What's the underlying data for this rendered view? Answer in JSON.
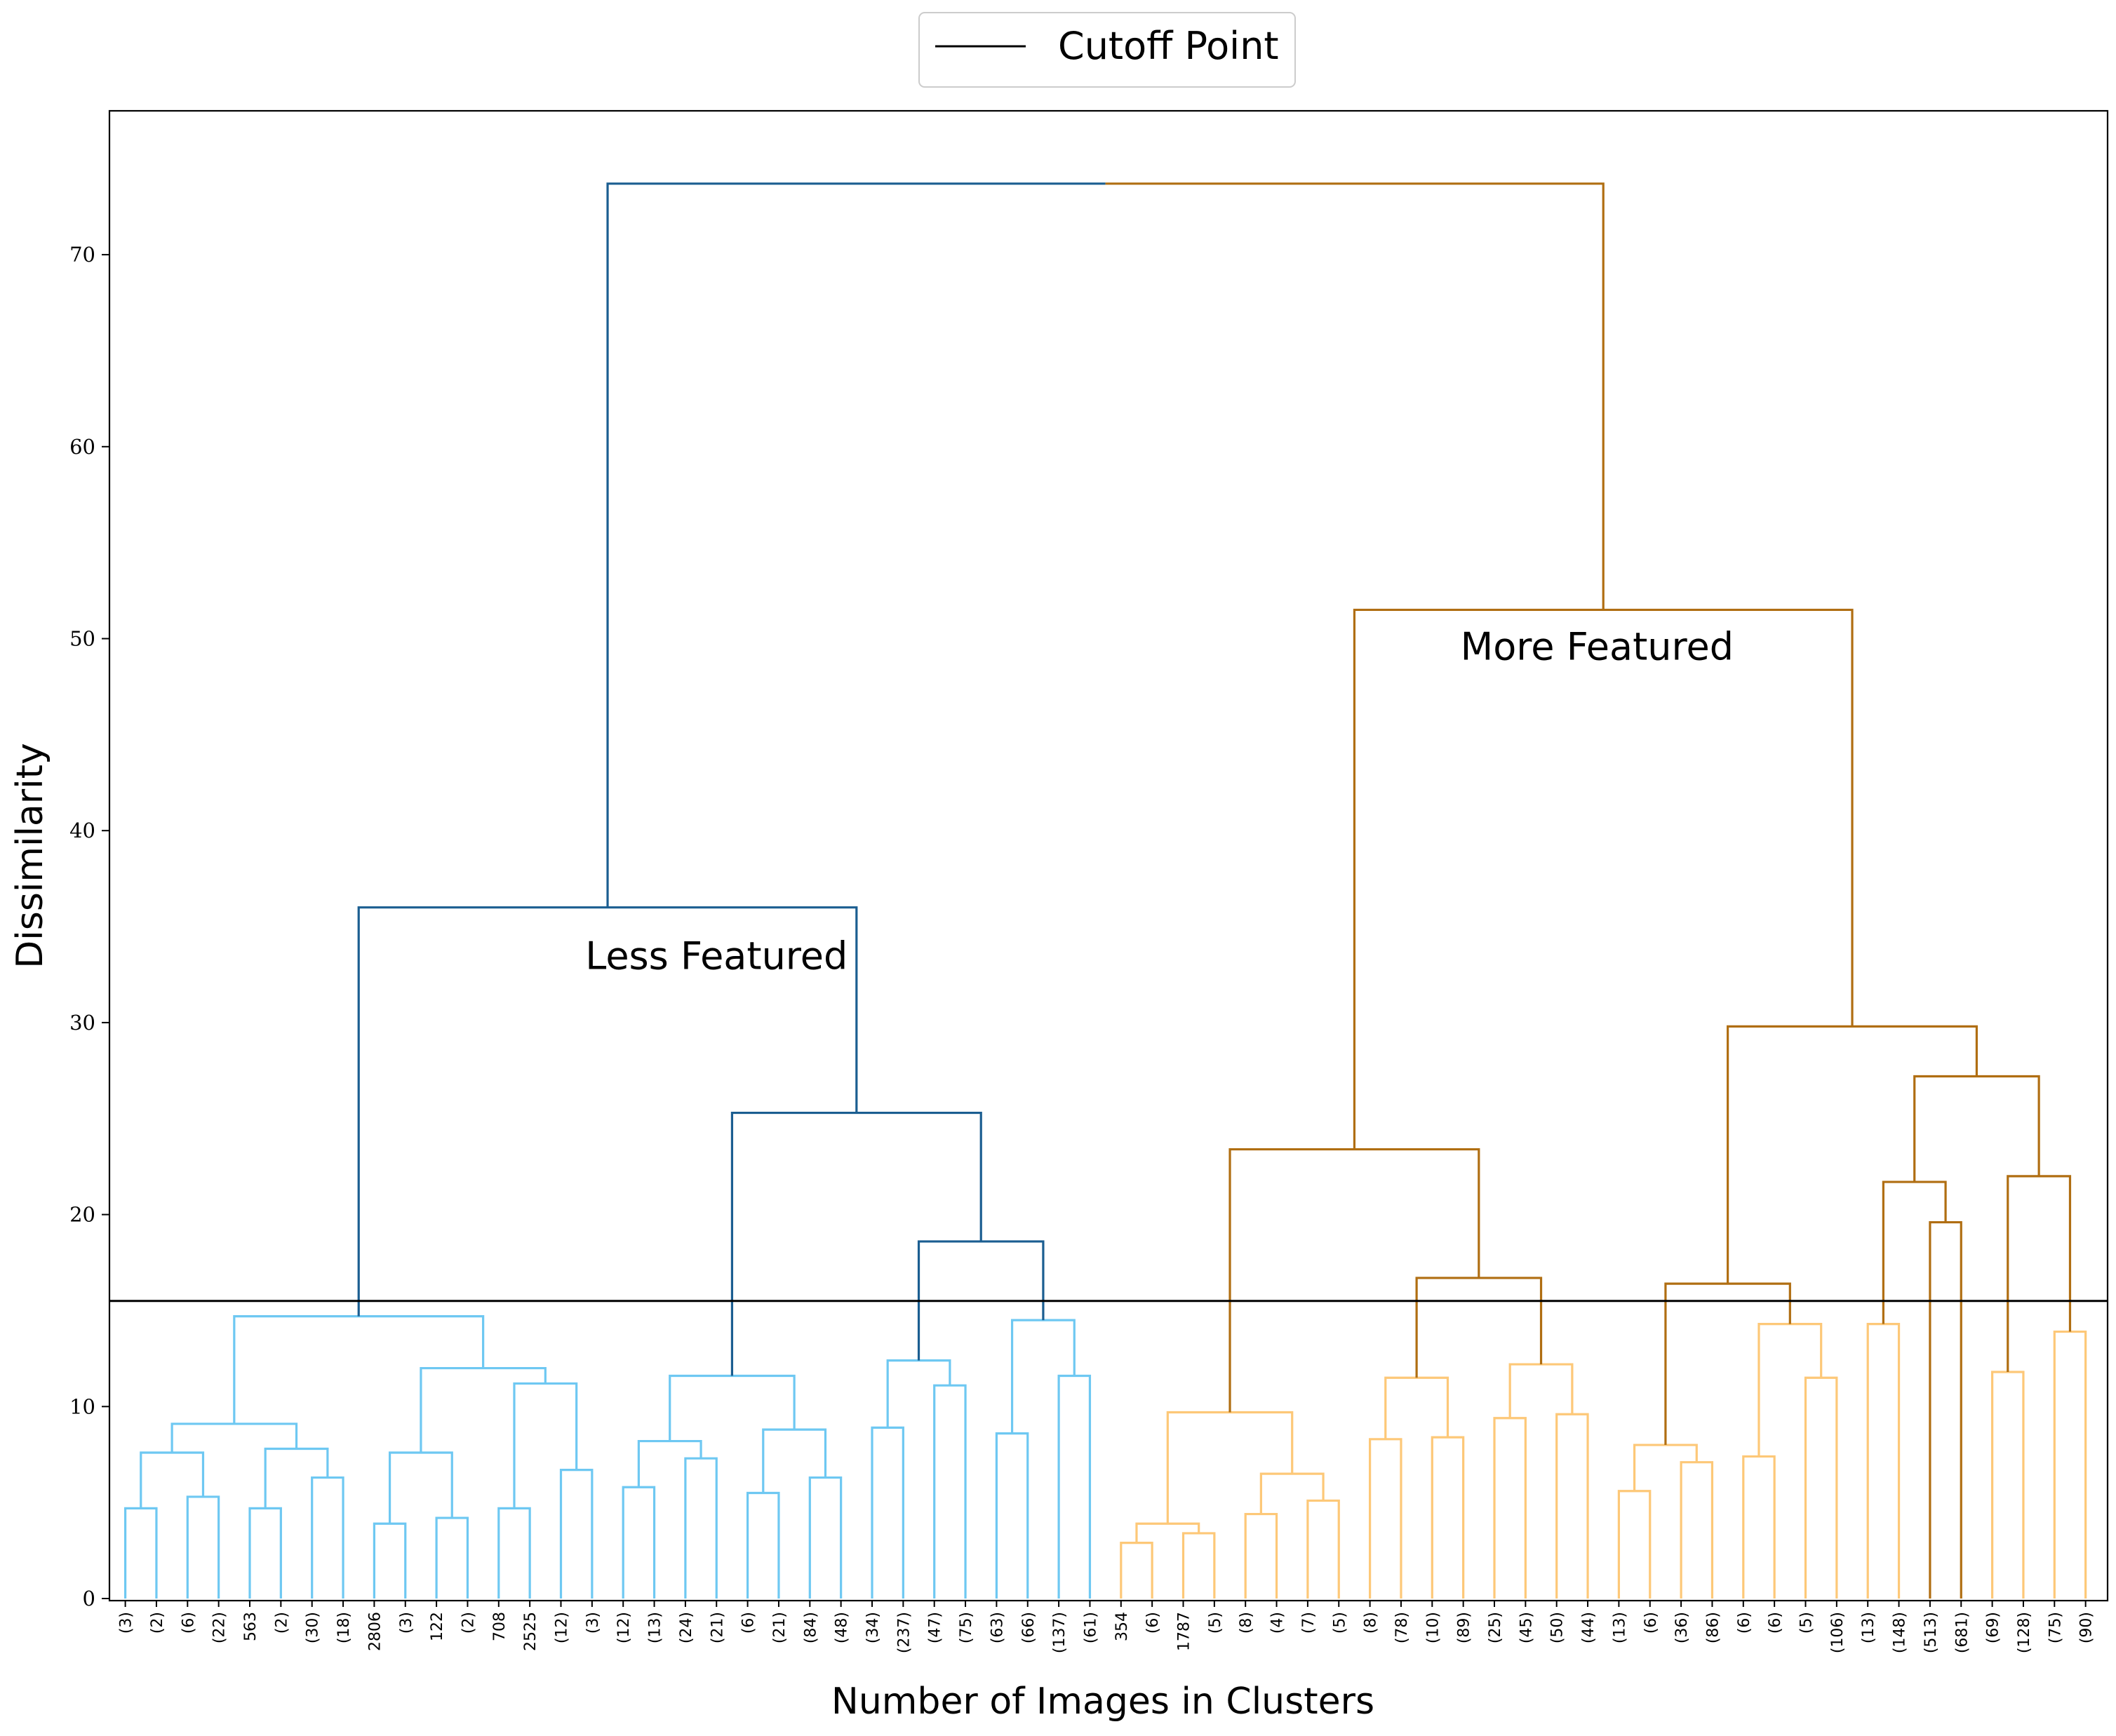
{
  "chart_data": {
    "type": "dendrogram",
    "title": "",
    "xlabel": "Number of Images in Clusters",
    "ylabel": "Dissimilarity",
    "ylim": [
      0,
      77.5
    ],
    "yticks": [
      0,
      10,
      20,
      30,
      40,
      50,
      60,
      70
    ],
    "grid": false,
    "legend": {
      "placement": "top-center",
      "entries": [
        {
          "label": "Cutoff Point",
          "color": "#000000"
        }
      ]
    },
    "cutoff": 15.5,
    "colors": {
      "less_featured_leaf": "#6ec8f2",
      "less_featured_branch": "#1b5e91",
      "more_featured_leaf": "#fdc878",
      "more_featured_branch": "#b06e12",
      "cutoff": "#000000"
    },
    "leaf_labels": [
      "(3)",
      "(2)",
      "(6)",
      "(22)",
      "563",
      "(2)",
      "(30)",
      "(18)",
      "2806",
      "(3)",
      "122",
      "(2)",
      "708",
      "2525",
      "(12)",
      "(3)",
      "(12)",
      "(13)",
      "(24)",
      "(21)",
      "(6)",
      "(21)",
      "(84)",
      "(48)",
      "(34)",
      "(237)",
      "(47)",
      "(75)",
      "(63)",
      "(66)",
      "(137)",
      "(61)",
      "354",
      "(6)",
      "1787",
      "(5)",
      "(8)",
      "(4)",
      "(7)",
      "(5)",
      "(8)",
      "(78)",
      "(10)",
      "(89)",
      "(25)",
      "(45)",
      "(50)",
      "(44)",
      "(13)",
      "(6)",
      "(36)",
      "(86)",
      "(6)",
      "(6)",
      "(5)",
      "(106)",
      "(13)",
      "(148)",
      "(513)",
      "(681)",
      "(69)",
      "(128)",
      "(75)",
      "(90)"
    ],
    "merges": [
      {
        "left": 0,
        "right": 1,
        "height": 4.7,
        "color": "#6ec8f2"
      },
      {
        "left": 2,
        "right": 3,
        "height": 5.3,
        "color": "#6ec8f2"
      },
      {
        "left": 64,
        "right": 65,
        "height": 7.6,
        "color": "#6ec8f2"
      },
      {
        "left": 4,
        "right": 5,
        "height": 4.7,
        "color": "#6ec8f2"
      },
      {
        "left": 6,
        "right": 7,
        "height": 6.3,
        "color": "#6ec8f2"
      },
      {
        "left": 67,
        "right": 68,
        "height": 7.8,
        "color": "#6ec8f2"
      },
      {
        "left": 66,
        "right": 69,
        "height": 9.1,
        "color": "#6ec8f2"
      },
      {
        "left": 8,
        "right": 9,
        "height": 3.9,
        "color": "#6ec8f2"
      },
      {
        "left": 10,
        "right": 11,
        "height": 4.2,
        "color": "#6ec8f2"
      },
      {
        "left": 71,
        "right": 72,
        "height": 7.6,
        "color": "#6ec8f2"
      },
      {
        "left": 12,
        "right": 13,
        "height": 4.7,
        "color": "#6ec8f2"
      },
      {
        "left": 14,
        "right": 15,
        "height": 6.7,
        "color": "#6ec8f2"
      },
      {
        "left": 74,
        "right": 75,
        "height": 11.2,
        "color": "#6ec8f2"
      },
      {
        "left": 73,
        "right": 76,
        "height": 12.0,
        "color": "#6ec8f2"
      },
      {
        "left": 70,
        "right": 77,
        "height": 14.7,
        "color": "#6ec8f2"
      },
      {
        "left": 16,
        "right": 17,
        "height": 5.8,
        "color": "#6ec8f2"
      },
      {
        "left": 18,
        "right": 19,
        "height": 7.3,
        "color": "#6ec8f2"
      },
      {
        "left": 79,
        "right": 80,
        "height": 8.2,
        "color": "#6ec8f2"
      },
      {
        "left": 20,
        "right": 21,
        "height": 5.5,
        "color": "#6ec8f2"
      },
      {
        "left": 22,
        "right": 23,
        "height": 6.3,
        "color": "#6ec8f2"
      },
      {
        "left": 82,
        "right": 83,
        "height": 8.8,
        "color": "#6ec8f2"
      },
      {
        "left": 81,
        "right": 84,
        "height": 11.6,
        "color": "#6ec8f2"
      },
      {
        "left": 24,
        "right": 25,
        "height": 8.9,
        "color": "#6ec8f2"
      },
      {
        "left": 26,
        "right": 27,
        "height": 11.1,
        "color": "#6ec8f2"
      },
      {
        "left": 86,
        "right": 87,
        "height": 12.4,
        "color": "#6ec8f2"
      },
      {
        "left": 28,
        "right": 29,
        "height": 8.6,
        "color": "#6ec8f2"
      },
      {
        "left": 30,
        "right": 31,
        "height": 11.6,
        "color": "#6ec8f2"
      },
      {
        "left": 89,
        "right": 90,
        "height": 14.5,
        "color": "#6ec8f2"
      },
      {
        "left": 88,
        "right": 91,
        "height": 18.6,
        "color": "#1b5e91"
      },
      {
        "left": 85,
        "right": 92,
        "height": 25.3,
        "color": "#1b5e91"
      },
      {
        "left": 78,
        "right": 93,
        "height": 36.0,
        "color": "#1b5e91"
      },
      {
        "left": 32,
        "right": 33,
        "height": 2.9,
        "color": "#fdc878"
      },
      {
        "left": 34,
        "right": 35,
        "height": 3.4,
        "color": "#fdc878"
      },
      {
        "left": 95,
        "right": 96,
        "height": 3.9,
        "color": "#fdc878"
      },
      {
        "left": 36,
        "right": 37,
        "height": 4.4,
        "color": "#fdc878"
      },
      {
        "left": 38,
        "right": 39,
        "height": 5.1,
        "color": "#fdc878"
      },
      {
        "left": 98,
        "right": 99,
        "height": 6.5,
        "color": "#fdc878"
      },
      {
        "left": 97,
        "right": 100,
        "height": 9.7,
        "color": "#fdc878"
      },
      {
        "left": 40,
        "right": 41,
        "height": 8.3,
        "color": "#fdc878"
      },
      {
        "left": 42,
        "right": 43,
        "height": 8.4,
        "color": "#fdc878"
      },
      {
        "left": 102,
        "right": 103,
        "height": 11.5,
        "color": "#fdc878"
      },
      {
        "left": 44,
        "right": 45,
        "height": 9.4,
        "color": "#fdc878"
      },
      {
        "left": 46,
        "right": 47,
        "height": 9.6,
        "color": "#fdc878"
      },
      {
        "left": 105,
        "right": 106,
        "height": 12.2,
        "color": "#fdc878"
      },
      {
        "left": 104,
        "right": 107,
        "height": 16.7,
        "color": "#b06e12"
      },
      {
        "left": 101,
        "right": 108,
        "height": 23.4,
        "color": "#b06e12"
      },
      {
        "left": 48,
        "right": 49,
        "height": 5.6,
        "color": "#fdc878"
      },
      {
        "left": 50,
        "right": 51,
        "height": 7.1,
        "color": "#fdc878"
      },
      {
        "left": 110,
        "right": 111,
        "height": 8.0,
        "color": "#fdc878"
      },
      {
        "left": 52,
        "right": 53,
        "height": 7.4,
        "color": "#fdc878"
      },
      {
        "left": 54,
        "right": 55,
        "height": 11.5,
        "color": "#fdc878"
      },
      {
        "left": 113,
        "right": 114,
        "height": 14.3,
        "color": "#fdc878"
      },
      {
        "left": 112,
        "right": 115,
        "height": 16.4,
        "color": "#b06e12"
      },
      {
        "left": 56,
        "right": 57,
        "height": 14.3,
        "color": "#fdc878"
      },
      {
        "left": 58,
        "right": 59,
        "height": 19.6,
        "color": "#b06e12"
      },
      {
        "left": 117,
        "right": 118,
        "height": 21.7,
        "color": "#b06e12"
      },
      {
        "left": 60,
        "right": 61,
        "height": 11.8,
        "color": "#fdc878"
      },
      {
        "left": 62,
        "right": 63,
        "height": 13.9,
        "color": "#fdc878"
      },
      {
        "left": 120,
        "right": 121,
        "height": 22.0,
        "color": "#b06e12"
      },
      {
        "left": 119,
        "right": 122,
        "height": 27.2,
        "color": "#b06e12"
      },
      {
        "left": 116,
        "right": 123,
        "height": 29.8,
        "color": "#b06e12"
      },
      {
        "left": 109,
        "right": 124,
        "height": 51.5,
        "color": "#b06e12"
      },
      {
        "left": 94,
        "right": 125,
        "height": 73.7,
        "color": "split"
      }
    ],
    "annotations": [
      {
        "text": "Less Featured",
        "x_leaf": 19.0,
        "y": 32.8
      },
      {
        "text": "More Featured",
        "x_leaf": 47.3,
        "y": 48.9
      }
    ]
  }
}
